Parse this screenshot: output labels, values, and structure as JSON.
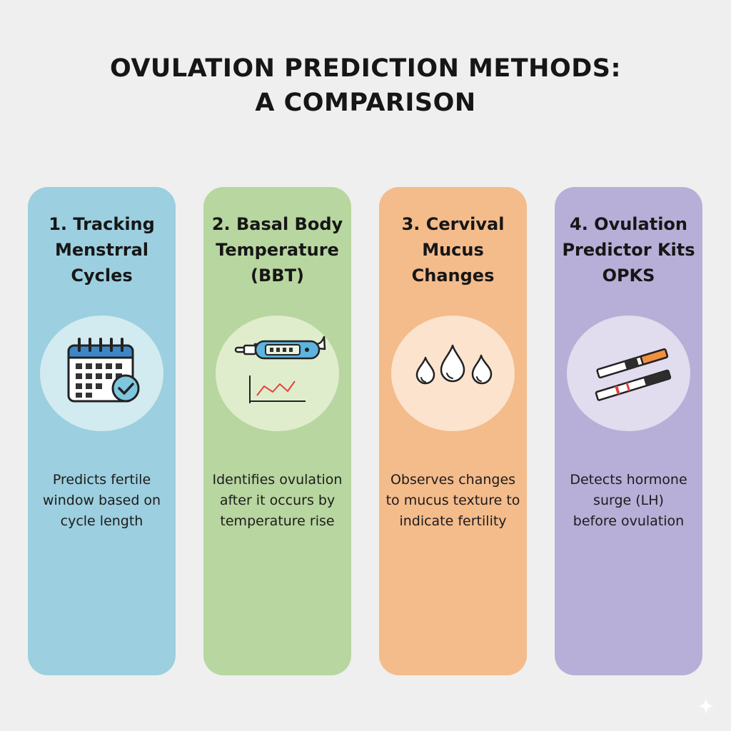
{
  "title": {
    "line1": "OVULATION PREDICTION METHODS:",
    "line2": "A COMPARISON"
  },
  "colors": {
    "background": "#efefef",
    "card_1": "#9ccfdf",
    "card_2": "#b8d69f",
    "card_3": "#f4bb8b",
    "card_4": "#b7afd7"
  },
  "cards": [
    {
      "title_lines": [
        "1. Tracking",
        "Menstrral",
        "Cycles"
      ],
      "icon": "calendar-check-icon",
      "description_lines": [
        "Predicts fertile",
        "window based on",
        "cycle length"
      ]
    },
    {
      "title_lines": [
        "2. Basal Body",
        "Temperature",
        "(BBT)"
      ],
      "icon": "thermometer-chart-icon",
      "description_lines": [
        "Identifies ovulation",
        "after it occurs by",
        "temperature rise"
      ]
    },
    {
      "title_lines": [
        "3. Cervival",
        "Mucus",
        "Changes"
      ],
      "icon": "water-drops-icon",
      "description_lines": [
        "Observes changes",
        "to mucus texture to",
        "indicate fertility"
      ]
    },
    {
      "title_lines": [
        "4. Ovulation",
        "Predictor Kits",
        "OPKS"
      ],
      "icon": "test-strips-icon",
      "description_lines": [
        "Detects hormone",
        "surge (LH)",
        "before ovulation"
      ]
    }
  ]
}
